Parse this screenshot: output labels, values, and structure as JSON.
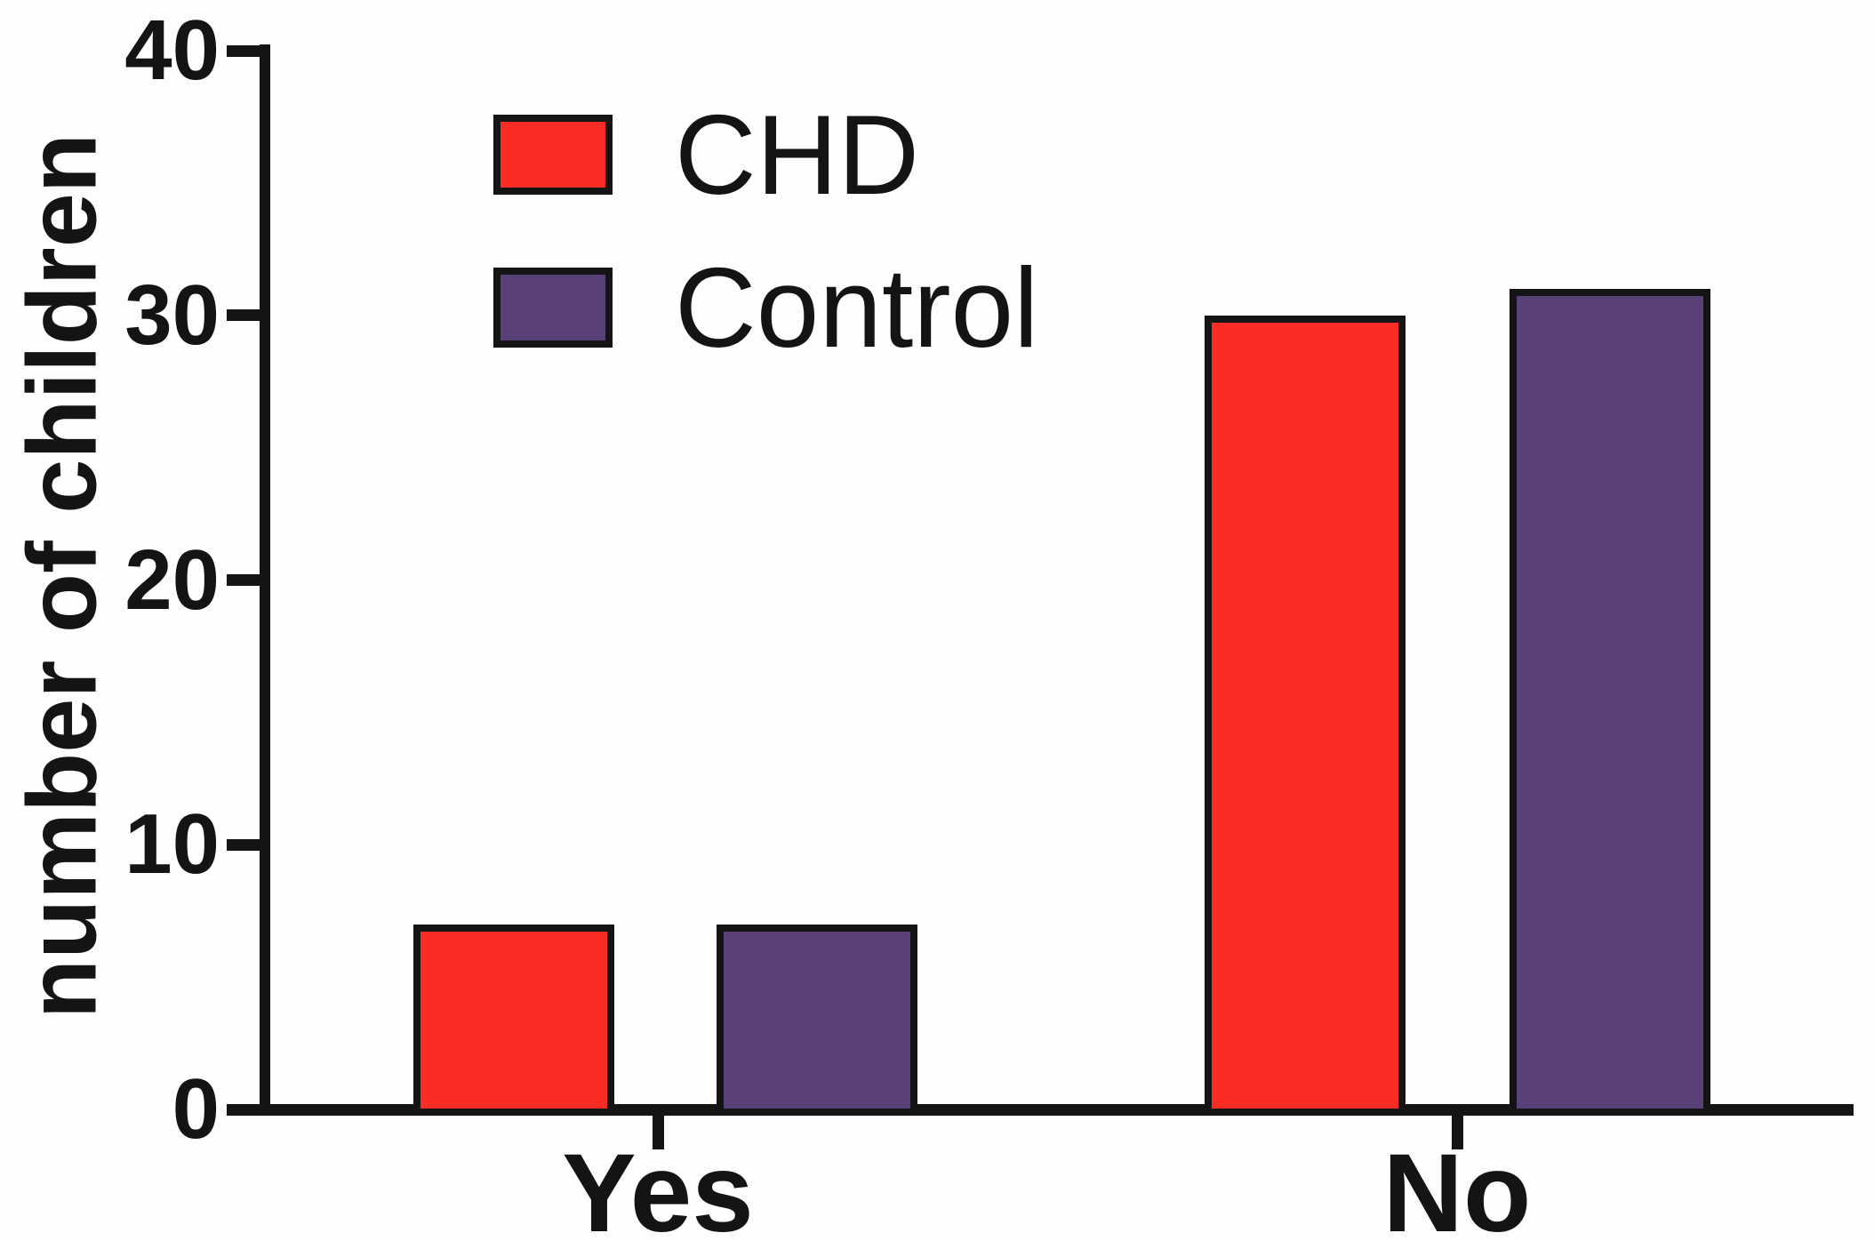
{
  "chart_data": {
    "type": "bar",
    "title": "",
    "xlabel": "",
    "ylabel": "number of children",
    "categories": [
      "Yes",
      "No"
    ],
    "series": [
      {
        "name": "CHD",
        "color": "#fb2c24",
        "values": [
          7,
          30
        ]
      },
      {
        "name": "Control",
        "color": "#5a4079",
        "values": [
          7,
          31
        ]
      }
    ],
    "ylim": [
      0,
      40
    ],
    "yticks": [
      0,
      10,
      20,
      30,
      40
    ],
    "grid": false,
    "legend_position": "top-left-inside",
    "axis_color": "#141414"
  }
}
